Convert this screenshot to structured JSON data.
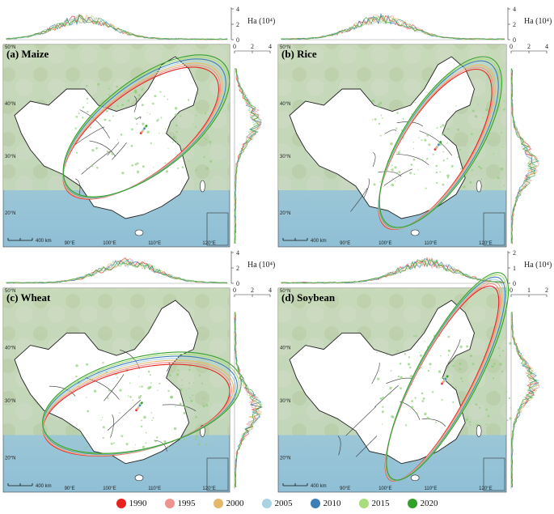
{
  "figure": {
    "panels": [
      {
        "id": "a",
        "title": "(a) Maize",
        "unit": "Ha (10⁴)",
        "top_ticks": [
          "0",
          "2",
          "4"
        ],
        "right_ticks": [
          "0",
          "2",
          "4"
        ]
      },
      {
        "id": "b",
        "title": "(b) Rice",
        "unit": "Ha (10⁴)",
        "top_ticks": [
          "0",
          "2",
          "4"
        ],
        "right_ticks": [
          "0",
          "2",
          "4"
        ]
      },
      {
        "id": "c",
        "title": "(c) Wheat",
        "unit": "Ha (10⁴)",
        "top_ticks": [
          "0",
          "2",
          "4"
        ],
        "right_ticks": [
          "0",
          "2",
          "4"
        ]
      },
      {
        "id": "d",
        "title": "(d) Soybean",
        "unit": "Ha (10⁴)",
        "top_ticks": [
          "0",
          "1",
          "2"
        ],
        "right_ticks": [
          "0",
          "1",
          "2"
        ]
      }
    ],
    "map_labels": {
      "lat_50": "50°N",
      "lat_40": "40°N",
      "lat_30": "30°N",
      "lat_20": "20°N",
      "lon_90": "90°E",
      "lon_100": "100°E",
      "lon_110": "110°E",
      "lon_120": "120°E",
      "scale": "400 km"
    },
    "legend": [
      {
        "label": "1990",
        "color": "#e8231f"
      },
      {
        "label": "1995",
        "color": "#f0928f"
      },
      {
        "label": "2000",
        "color": "#e3b86b"
      },
      {
        "label": "2005",
        "color": "#a9d3e4"
      },
      {
        "label": "2010",
        "color": "#3b7fb6"
      },
      {
        "label": "2015",
        "color": "#a7dd7d"
      },
      {
        "label": "2020",
        "color": "#34a02c"
      }
    ]
  }
}
